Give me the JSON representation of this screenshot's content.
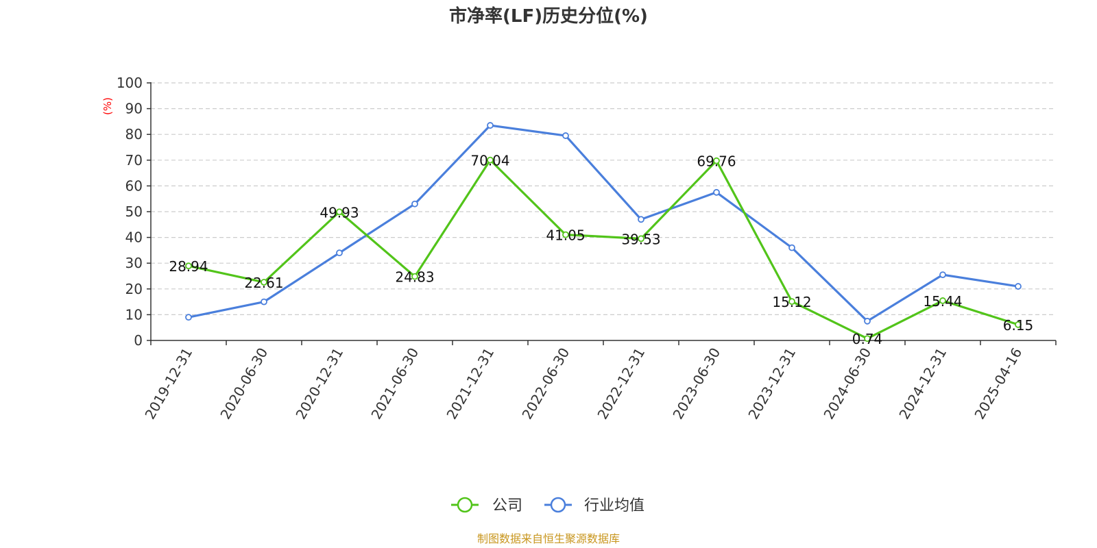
{
  "chart_data": {
    "type": "line",
    "title": "市净率(LF)历史分位(%)",
    "ylabel": "(%)",
    "ylim": [
      0,
      100
    ],
    "yticks": [
      "0",
      "10",
      "20",
      "30",
      "40",
      "50",
      "60",
      "70",
      "80",
      "90",
      "100"
    ],
    "grid": true,
    "legend_position": "bottom-center",
    "categories": [
      "2019-12-31",
      "2020-06-30",
      "2020-12-31",
      "2021-06-30",
      "2021-12-31",
      "2022-06-30",
      "2022-12-31",
      "2023-06-30",
      "2023-12-31",
      "2024-06-30",
      "2024-12-31",
      "2025-04-16"
    ],
    "series": [
      {
        "name": "公司",
        "color": "#52c41a",
        "values": [
          28.94,
          22.61,
          49.93,
          24.83,
          70.04,
          41.05,
          39.53,
          69.76,
          15.12,
          0.74,
          15.44,
          6.15
        ],
        "labels": [
          "28.94",
          "22.61",
          "49.93",
          "24.83",
          "70.04",
          "41.05",
          "39.53",
          "69.76",
          "15.12",
          "0.74",
          "15.44",
          "6.15"
        ]
      },
      {
        "name": "行业均值",
        "color": "#4a7fdc",
        "values": [
          9.0,
          15.0,
          34.0,
          53.0,
          83.5,
          79.5,
          47.0,
          57.5,
          36.0,
          7.5,
          25.5,
          21.0
        ]
      }
    ],
    "source": "制图数据来自恒生聚源数据库"
  }
}
